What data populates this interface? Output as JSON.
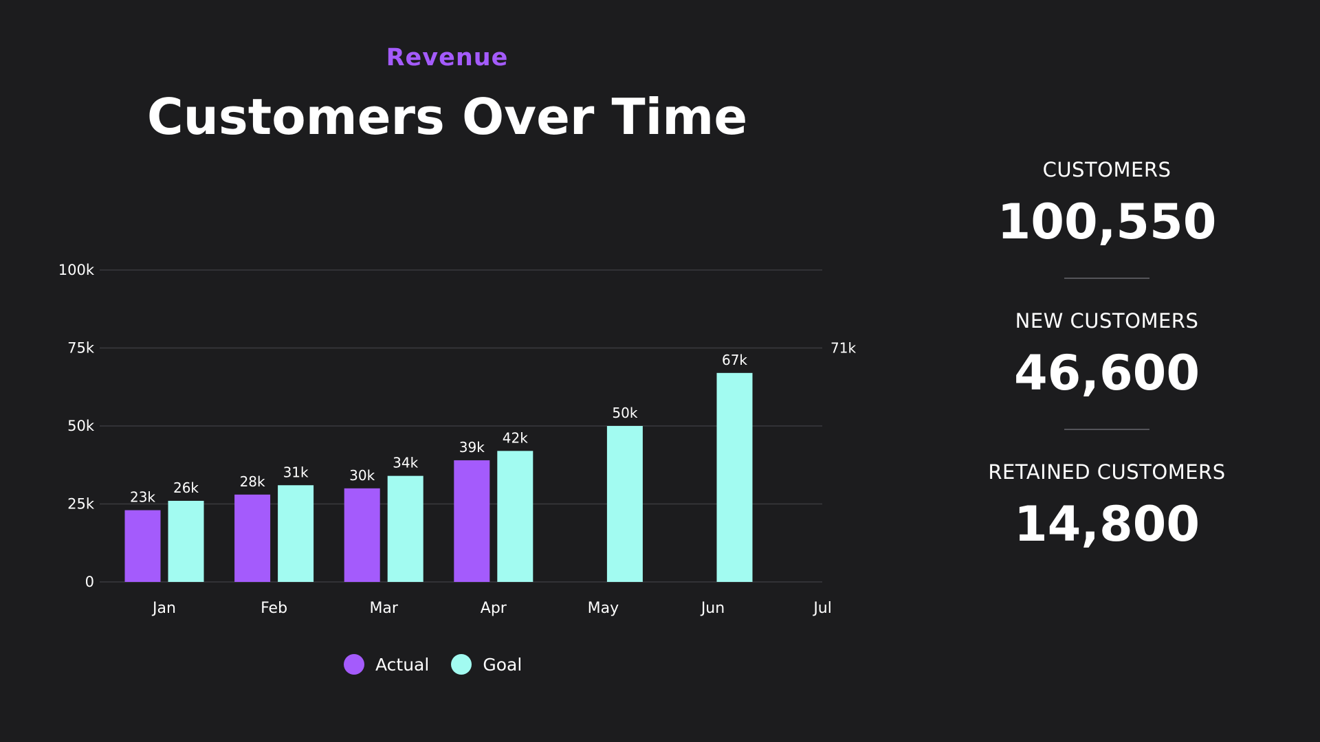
{
  "header": {
    "subtitle": "Revenue",
    "title": "Customers Over Time"
  },
  "colors": {
    "background": "#1c1c1e",
    "actual": "#a45bfc",
    "goal": "#a2fbf1",
    "subtitle": "#a45bfc",
    "grid": "#3a3a3e"
  },
  "chart_data": {
    "type": "bar",
    "categories": [
      "Jan",
      "Feb",
      "Mar",
      "Apr",
      "May",
      "Jun",
      "Jul"
    ],
    "series": [
      {
        "name": "Actual",
        "values": [
          23,
          28,
          30,
          39,
          null,
          null,
          null
        ],
        "labels": [
          "23k",
          "28k",
          "30k",
          "39k",
          "",
          "",
          ""
        ]
      },
      {
        "name": "Goal",
        "values": [
          26,
          31,
          34,
          42,
          50,
          67,
          null
        ],
        "labels": [
          "26k",
          "31k",
          "34k",
          "42k",
          "50k",
          "67k",
          ""
        ]
      }
    ],
    "yticks": [
      0,
      25,
      50,
      75,
      100
    ],
    "ytick_labels": [
      "0",
      "25k",
      "50k",
      "75k",
      "100k"
    ],
    "ylim": [
      0,
      100
    ],
    "annotation": "71k",
    "annotation_value": 75,
    "grid": true,
    "legend_position": "bottom",
    "xlabel": "",
    "ylabel": "",
    "title": ""
  },
  "kpis": [
    {
      "label": "CUSTOMERS",
      "value": "100,550"
    },
    {
      "label": "NEW CUSTOMERS",
      "value": "46,600"
    },
    {
      "label": "RETAINED CUSTOMERS",
      "value": "14,800"
    }
  ]
}
